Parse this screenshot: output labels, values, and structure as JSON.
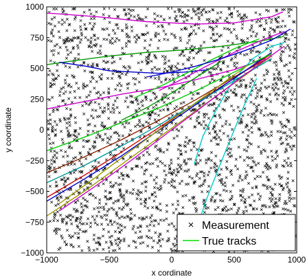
{
  "chart_data": {
    "type": "scatter",
    "title": "",
    "xlabel": "x cordinate",
    "ylabel": "y coordinate",
    "xlim": [
      -1000,
      1000
    ],
    "ylim": [
      -1000,
      1000
    ],
    "xticks": [
      -1000,
      -500,
      0,
      500,
      1000
    ],
    "yticks": [
      -1000,
      -750,
      -500,
      -250,
      0,
      250,
      500,
      750,
      1000
    ],
    "xtick_labels": [
      "−1000",
      "−500",
      "0",
      "500",
      "1000"
    ],
    "ytick_labels": [
      "−1000",
      "−750",
      "−500",
      "−250",
      "0",
      "250",
      "500",
      "750",
      "1000"
    ],
    "grid": false,
    "legend": {
      "placement": "bottom-right",
      "entries": [
        {
          "label": "Measurement",
          "marker": "x",
          "color": "#000000"
        },
        {
          "label": "True tracks",
          "marker": "line",
          "color": "#00dd00"
        }
      ]
    },
    "measurement_clutter": {
      "marker": "x",
      "color": "#000000",
      "approx_count": 2400,
      "distribution": "uniform over the plot area"
    },
    "tracks": [
      {
        "color": "#cc00cc",
        "x": [
          -1000,
          -600,
          -200,
          200,
          500,
          800,
          890
        ],
        "y": [
          950,
          920,
          880,
          860,
          870,
          920,
          960
        ]
      },
      {
        "color": "#009900",
        "x": [
          -1000,
          -800,
          -500,
          -200,
          100,
          400,
          700,
          900
        ],
        "y": [
          530,
          560,
          600,
          630,
          650,
          680,
          720,
          760
        ]
      },
      {
        "color": "#0000cc",
        "x": [
          -900,
          -700,
          -500,
          -300,
          -100,
          100,
          300
        ],
        "y": [
          550,
          520,
          480,
          470,
          460,
          470,
          490
        ]
      },
      {
        "color": "#cc00cc",
        "x": [
          -1000,
          -700,
          -400,
          -100,
          200,
          500,
          750
        ],
        "y": [
          170,
          230,
          290,
          340,
          410,
          490,
          580
        ]
      },
      {
        "color": "#00cccc",
        "x": [
          180,
          250,
          350,
          450,
          550,
          650,
          800,
          900
        ],
        "y": [
          -280,
          -50,
          150,
          330,
          470,
          580,
          680,
          710
        ]
      },
      {
        "color": "#00cccc",
        "x": [
          200,
          280,
          380,
          480,
          580,
          680
        ],
        "y": [
          -800,
          -560,
          -300,
          -50,
          200,
          420
        ]
      },
      {
        "color": "#882200",
        "x": [
          -1000,
          -700,
          -400,
          -100,
          200,
          500,
          800
        ],
        "y": [
          -350,
          -220,
          -80,
          80,
          250,
          430,
          600
        ]
      },
      {
        "color": "#cc0000",
        "x": [
          -1000,
          -700,
          -400,
          -100,
          200,
          500,
          800
        ],
        "y": [
          -550,
          -370,
          -180,
          20,
          220,
          420,
          620
        ]
      },
      {
        "color": "#0000cc",
        "x": [
          -1000,
          -700,
          -400,
          -100,
          200,
          500,
          800
        ],
        "y": [
          -580,
          -400,
          -210,
          0,
          210,
          420,
          630
        ]
      },
      {
        "color": "#999900",
        "x": [
          -1000,
          -700,
          -400,
          -100,
          200,
          500,
          800
        ],
        "y": [
          -700,
          -500,
          -280,
          -60,
          160,
          380,
          600
        ]
      },
      {
        "color": "#00cc00",
        "x": [
          -1000,
          -700,
          -400,
          -100,
          200,
          500,
          800
        ],
        "y": [
          -170,
          -60,
          60,
          180,
          320,
          470,
          620
        ]
      },
      {
        "color": "#009999",
        "x": [
          -1000,
          -700,
          -400,
          -100,
          200,
          500,
          800
        ],
        "y": [
          -430,
          -290,
          -130,
          40,
          220,
          400,
          580
        ]
      },
      {
        "color": "#009900",
        "x": [
          -400,
          -200,
          0,
          200,
          400
        ],
        "y": [
          80,
          180,
          300,
          430,
          560
        ]
      },
      {
        "color": "#cc00cc",
        "x": [
          -100,
          100,
          300,
          500,
          700,
          900
        ],
        "y": [
          320,
          420,
          530,
          630,
          720,
          800
        ]
      },
      {
        "color": "#00cc00",
        "x": [
          -300,
          -100,
          100,
          300,
          500,
          700
        ],
        "y": [
          260,
          350,
          450,
          560,
          660,
          740
        ]
      },
      {
        "color": "#cc00cc",
        "x": [
          -900,
          -600,
          -300,
          0,
          300,
          600,
          900
        ],
        "y": [
          -660,
          -450,
          -230,
          0,
          230,
          460,
          680
        ]
      },
      {
        "color": "#999900",
        "x": [
          -900,
          -600,
          -300,
          0,
          300,
          600
        ],
        "y": [
          -600,
          -380,
          -150,
          80,
          300,
          520
        ]
      },
      {
        "color": "#0000cc",
        "x": [
          -200,
          0,
          200,
          400,
          600,
          800,
          950
        ],
        "y": [
          430,
          470,
          520,
          580,
          650,
          730,
          820
        ]
      }
    ]
  }
}
